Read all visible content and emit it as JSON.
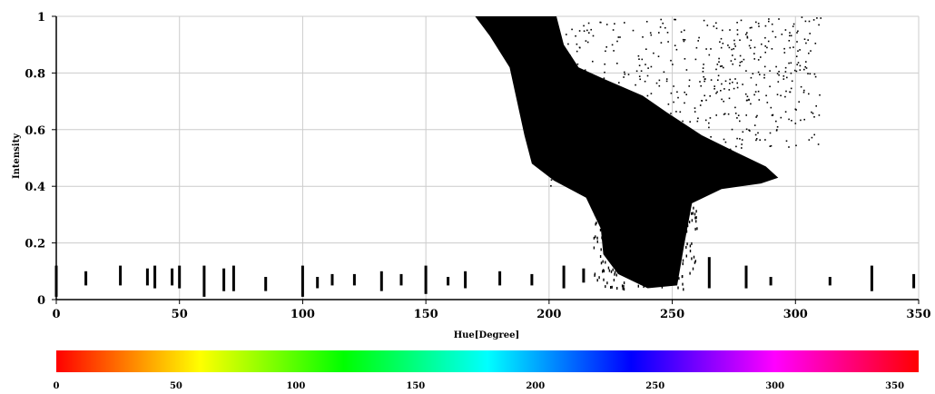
{
  "chart_data": {
    "type": "scatter",
    "xlabel": "Hue[Degree]",
    "ylabel": "Intensity",
    "xlim": [
      0,
      350
    ],
    "ylim": [
      0,
      1
    ],
    "x_ticks": [
      "0",
      "50",
      "100",
      "150",
      "200",
      "250",
      "300",
      "350"
    ],
    "y_ticks": [
      "0",
      "0.2",
      "0.4",
      "0.6",
      "0.8",
      "1"
    ],
    "grid": true,
    "marker_color": "#000000",
    "dense_region": {
      "note": "dense black point cloud",
      "outline": [
        [
          170,
          1.0
        ],
        [
          203,
          1.0
        ],
        [
          206,
          0.9
        ],
        [
          212,
          0.82
        ],
        [
          222,
          0.78
        ],
        [
          238,
          0.72
        ],
        [
          248,
          0.66
        ],
        [
          262,
          0.58
        ],
        [
          276,
          0.52
        ],
        [
          288,
          0.47
        ],
        [
          293,
          0.43
        ],
        [
          286,
          0.41
        ],
        [
          270,
          0.39
        ],
        [
          258,
          0.34
        ],
        [
          255,
          0.2
        ],
        [
          252,
          0.05
        ],
        [
          240,
          0.04
        ],
        [
          228,
          0.09
        ],
        [
          222,
          0.16
        ],
        [
          221,
          0.25
        ],
        [
          215,
          0.36
        ],
        [
          202,
          0.42
        ],
        [
          193,
          0.48
        ],
        [
          190,
          0.58
        ],
        [
          184,
          0.82
        ],
        [
          176,
          0.93
        ]
      ]
    },
    "low_intensity_bars": [
      {
        "hue": 0,
        "low": 0.01,
        "high": 0.12
      },
      {
        "hue": 12,
        "low": 0.05,
        "high": 0.1
      },
      {
        "hue": 26,
        "low": 0.05,
        "high": 0.12
      },
      {
        "hue": 37,
        "low": 0.05,
        "high": 0.11
      },
      {
        "hue": 40,
        "low": 0.04,
        "high": 0.12
      },
      {
        "hue": 47,
        "low": 0.05,
        "high": 0.11
      },
      {
        "hue": 50,
        "low": 0.04,
        "high": 0.12
      },
      {
        "hue": 60,
        "low": 0.01,
        "high": 0.12
      },
      {
        "hue": 68,
        "low": 0.03,
        "high": 0.11
      },
      {
        "hue": 72,
        "low": 0.03,
        "high": 0.12
      },
      {
        "hue": 85,
        "low": 0.03,
        "high": 0.08
      },
      {
        "hue": 100,
        "low": 0.01,
        "high": 0.12
      },
      {
        "hue": 106,
        "low": 0.04,
        "high": 0.08
      },
      {
        "hue": 112,
        "low": 0.05,
        "high": 0.09
      },
      {
        "hue": 121,
        "low": 0.05,
        "high": 0.09
      },
      {
        "hue": 132,
        "low": 0.03,
        "high": 0.1
      },
      {
        "hue": 140,
        "low": 0.05,
        "high": 0.09
      },
      {
        "hue": 150,
        "low": 0.02,
        "high": 0.12
      },
      {
        "hue": 159,
        "low": 0.05,
        "high": 0.08
      },
      {
        "hue": 166,
        "low": 0.04,
        "high": 0.1
      },
      {
        "hue": 180,
        "low": 0.05,
        "high": 0.1
      },
      {
        "hue": 193,
        "low": 0.05,
        "high": 0.09
      },
      {
        "hue": 206,
        "low": 0.04,
        "high": 0.12
      },
      {
        "hue": 214,
        "low": 0.06,
        "high": 0.11
      },
      {
        "hue": 265,
        "low": 0.04,
        "high": 0.15
      },
      {
        "hue": 280,
        "low": 0.04,
        "high": 0.12
      },
      {
        "hue": 290,
        "low": 0.05,
        "high": 0.08
      },
      {
        "hue": 314,
        "low": 0.05,
        "high": 0.08
      },
      {
        "hue": 331,
        "low": 0.03,
        "high": 0.12
      },
      {
        "hue": 348,
        "low": 0.04,
        "high": 0.09
      }
    ]
  },
  "colorbar": {
    "ticks": [
      "0",
      "50",
      "100",
      "150",
      "200",
      "250",
      "300",
      "350"
    ],
    "range": [
      0,
      360
    ],
    "gradient_stops": [
      {
        "hue": 0,
        "color": "#ff0000"
      },
      {
        "hue": 60,
        "color": "#ffff00"
      },
      {
        "hue": 120,
        "color": "#00ff00"
      },
      {
        "hue": 180,
        "color": "#00ffff"
      },
      {
        "hue": 240,
        "color": "#0000ff"
      },
      {
        "hue": 300,
        "color": "#ff00ff"
      },
      {
        "hue": 360,
        "color": "#ff0000"
      }
    ]
  },
  "colors": {
    "grid": "#cccccc",
    "axis": "#000000",
    "points": "#000000"
  }
}
